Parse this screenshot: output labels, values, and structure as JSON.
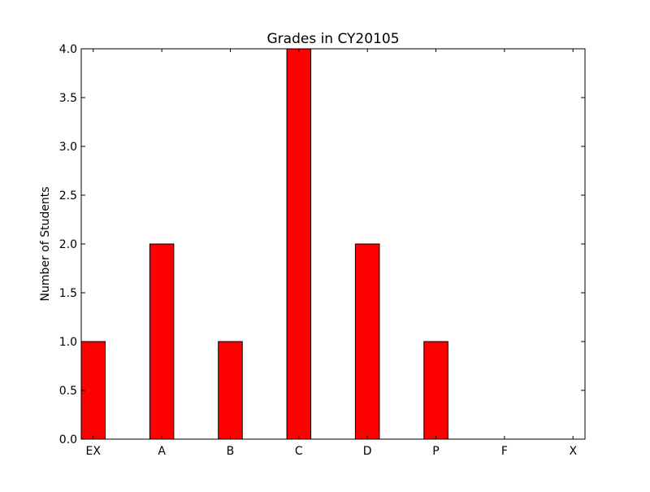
{
  "chart_data": {
    "type": "bar",
    "title": "Grades in CY20105",
    "xlabel": "",
    "ylabel": "Number of Students",
    "categories": [
      "EX",
      "A",
      "B",
      "C",
      "D",
      "P",
      "F",
      "X"
    ],
    "values": [
      1,
      2,
      1,
      4,
      2,
      1,
      0,
      0
    ],
    "ylim": [
      0,
      4
    ],
    "yticks": [
      "0.0",
      "0.5",
      "1.0",
      "1.5",
      "2.0",
      "2.5",
      "3.0",
      "3.5",
      "4.0"
    ],
    "bar_color": "#ff0000",
    "grid": false
  }
}
